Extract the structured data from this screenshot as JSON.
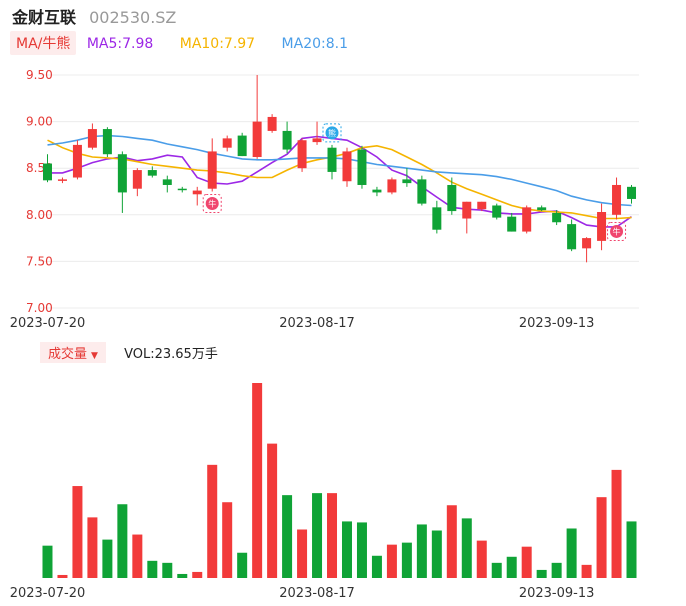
{
  "header": {
    "name": "金财互联",
    "code": "002530.SZ"
  },
  "ma_legend": {
    "badge": "MA/牛熊",
    "ma5": "MA5:7.98",
    "ma10": "MA10:7.97",
    "ma20": "MA20:8.1",
    "colors": {
      "ma5": "#9c27e6",
      "ma10": "#f5b400",
      "ma20": "#4a9de8"
    }
  },
  "volume_legend": {
    "badge": "成交量",
    "arrow": "▼",
    "text": "VOL:23.65万手"
  },
  "colors": {
    "up": "#f23a3a",
    "down": "#0fa336",
    "grid": "#ececec",
    "axis_label": "#e53935"
  },
  "markers": [
    {
      "label": "牛",
      "kind": "bull",
      "index": 11
    },
    {
      "label": "熊",
      "kind": "bear",
      "index": 19
    },
    {
      "label": "牛",
      "kind": "bull",
      "index": 38
    }
  ],
  "chart_data": [
    {
      "type": "candlestick",
      "ylim": [
        7.0,
        9.5
      ],
      "yticks": [
        "9.50",
        "9.00",
        "8.50",
        "8.00",
        "7.50",
        "7.00"
      ],
      "xticks": [
        "2023-07-20",
        "2023-08-17",
        "2023-09-13"
      ],
      "xtick_index": [
        0,
        18,
        34
      ],
      "grid": true,
      "candles": [
        {
          "o": 8.55,
          "h": 8.65,
          "l": 8.35,
          "c": 8.37
        },
        {
          "o": 8.37,
          "h": 8.4,
          "l": 8.34,
          "c": 8.38
        },
        {
          "o": 8.4,
          "h": 8.8,
          "l": 8.38,
          "c": 8.75
        },
        {
          "o": 8.72,
          "h": 8.98,
          "l": 8.7,
          "c": 8.92
        },
        {
          "o": 8.92,
          "h": 8.94,
          "l": 8.62,
          "c": 8.65
        },
        {
          "o": 8.65,
          "h": 8.68,
          "l": 8.02,
          "c": 8.24
        },
        {
          "o": 8.28,
          "h": 8.5,
          "l": 8.2,
          "c": 8.48
        },
        {
          "o": 8.48,
          "h": 8.52,
          "l": 8.4,
          "c": 8.42
        },
        {
          "o": 8.38,
          "h": 8.42,
          "l": 8.24,
          "c": 8.32
        },
        {
          "o": 8.28,
          "h": 8.3,
          "l": 8.24,
          "c": 8.27
        },
        {
          "o": 8.22,
          "h": 8.3,
          "l": 8.1,
          "c": 8.26
        },
        {
          "o": 8.28,
          "h": 8.82,
          "l": 8.25,
          "c": 8.68
        },
        {
          "o": 8.72,
          "h": 8.85,
          "l": 8.68,
          "c": 8.82
        },
        {
          "o": 8.85,
          "h": 8.88,
          "l": 8.63,
          "c": 8.63
        },
        {
          "o": 8.62,
          "h": 9.5,
          "l": 8.6,
          "c": 9.0
        },
        {
          "o": 8.9,
          "h": 9.08,
          "l": 8.88,
          "c": 9.05
        },
        {
          "o": 8.9,
          "h": 9.0,
          "l": 8.66,
          "c": 8.7
        },
        {
          "o": 8.5,
          "h": 8.82,
          "l": 8.46,
          "c": 8.8
        },
        {
          "o": 8.78,
          "h": 9.0,
          "l": 8.75,
          "c": 8.82
        },
        {
          "o": 8.72,
          "h": 8.75,
          "l": 8.38,
          "c": 8.46
        },
        {
          "o": 8.36,
          "h": 8.72,
          "l": 8.3,
          "c": 8.68
        },
        {
          "o": 8.7,
          "h": 8.74,
          "l": 8.28,
          "c": 8.32
        },
        {
          "o": 8.27,
          "h": 8.3,
          "l": 8.2,
          "c": 8.24
        },
        {
          "o": 8.24,
          "h": 8.4,
          "l": 8.22,
          "c": 8.38
        },
        {
          "o": 8.38,
          "h": 8.5,
          "l": 8.3,
          "c": 8.34
        },
        {
          "o": 8.38,
          "h": 8.42,
          "l": 8.1,
          "c": 8.12
        },
        {
          "o": 8.08,
          "h": 8.15,
          "l": 7.8,
          "c": 7.84
        },
        {
          "o": 8.32,
          "h": 8.4,
          "l": 8.0,
          "c": 8.04
        },
        {
          "o": 7.96,
          "h": 8.14,
          "l": 7.8,
          "c": 8.14
        },
        {
          "o": 8.06,
          "h": 8.14,
          "l": 8.04,
          "c": 8.14
        },
        {
          "o": 8.1,
          "h": 8.12,
          "l": 7.95,
          "c": 7.97
        },
        {
          "o": 7.98,
          "h": 8.02,
          "l": 7.82,
          "c": 7.82
        },
        {
          "o": 7.82,
          "h": 8.1,
          "l": 7.8,
          "c": 8.08
        },
        {
          "o": 8.08,
          "h": 8.1,
          "l": 8.04,
          "c": 8.05
        },
        {
          "o": 8.02,
          "h": 8.05,
          "l": 7.89,
          "c": 7.92
        },
        {
          "o": 7.9,
          "h": 7.95,
          "l": 7.61,
          "c": 7.63
        },
        {
          "o": 7.64,
          "h": 7.76,
          "l": 7.49,
          "c": 7.75
        },
        {
          "o": 7.72,
          "h": 8.12,
          "l": 7.62,
          "c": 8.03
        },
        {
          "o": 8.0,
          "h": 8.4,
          "l": 7.95,
          "c": 8.32
        },
        {
          "o": 8.3,
          "h": 8.32,
          "l": 8.12,
          "c": 8.17
        }
      ],
      "series": [
        {
          "name": "MA5",
          "values": [
            8.45,
            8.45,
            8.5,
            8.56,
            8.6,
            8.62,
            8.58,
            8.6,
            8.64,
            8.62,
            8.4,
            8.34,
            8.33,
            8.36,
            8.46,
            8.56,
            8.65,
            8.82,
            8.84,
            8.82,
            8.8,
            8.72,
            8.62,
            8.48,
            8.42,
            8.3,
            8.19,
            8.08,
            8.06,
            8.05,
            8.02,
            8.01,
            8.01,
            8.03,
            8.04,
            7.97,
            7.89,
            7.87,
            7.87,
            7.98
          ]
        },
        {
          "name": "MA10",
          "values": [
            8.8,
            8.72,
            8.66,
            8.62,
            8.61,
            8.6,
            8.57,
            8.54,
            8.52,
            8.5,
            8.48,
            8.47,
            8.45,
            8.42,
            8.4,
            8.4,
            8.48,
            8.55,
            8.59,
            8.62,
            8.66,
            8.72,
            8.74,
            8.7,
            8.62,
            8.54,
            8.45,
            8.35,
            8.28,
            8.22,
            8.16,
            8.1,
            8.06,
            8.04,
            8.03,
            8.02,
            7.99,
            7.96,
            7.96,
            7.97
          ]
        },
        {
          "name": "MA20",
          "values": [
            8.75,
            8.77,
            8.8,
            8.84,
            8.85,
            8.84,
            8.82,
            8.8,
            8.76,
            8.73,
            8.7,
            8.66,
            8.63,
            8.6,
            8.59,
            8.59,
            8.6,
            8.61,
            8.61,
            8.61,
            8.6,
            8.57,
            8.54,
            8.52,
            8.5,
            8.48,
            8.46,
            8.45,
            8.44,
            8.43,
            8.41,
            8.38,
            8.34,
            8.3,
            8.26,
            8.2,
            8.16,
            8.13,
            8.11,
            8.1
          ]
        }
      ]
    },
    {
      "type": "bar",
      "title": "VOL",
      "xticks": [
        "2023-07-20",
        "2023-08-17",
        "2023-09-13"
      ],
      "ylim": [
        0,
        19.3
      ],
      "values": [
        3.2,
        0.3,
        9.1,
        6.0,
        3.8,
        7.3,
        4.3,
        1.7,
        1.5,
        0.4,
        0.6,
        11.2,
        7.5,
        2.5,
        19.3,
        13.3,
        8.2,
        4.8,
        8.4,
        8.4,
        5.6,
        5.5,
        2.2,
        3.3,
        3.5,
        5.3,
        4.7,
        7.2,
        5.9,
        3.7,
        1.5,
        2.1,
        3.1,
        0.8,
        1.5,
        4.9,
        1.3,
        8.0,
        10.7,
        5.6
      ],
      "up": [
        false,
        true,
        true,
        true,
        false,
        false,
        true,
        false,
        false,
        false,
        true,
        true,
        true,
        false,
        true,
        true,
        false,
        true,
        false,
        true,
        false,
        false,
        false,
        true,
        false,
        false,
        false,
        true,
        false,
        true,
        false,
        false,
        true,
        false,
        false,
        false,
        true,
        true,
        true,
        false
      ]
    }
  ]
}
